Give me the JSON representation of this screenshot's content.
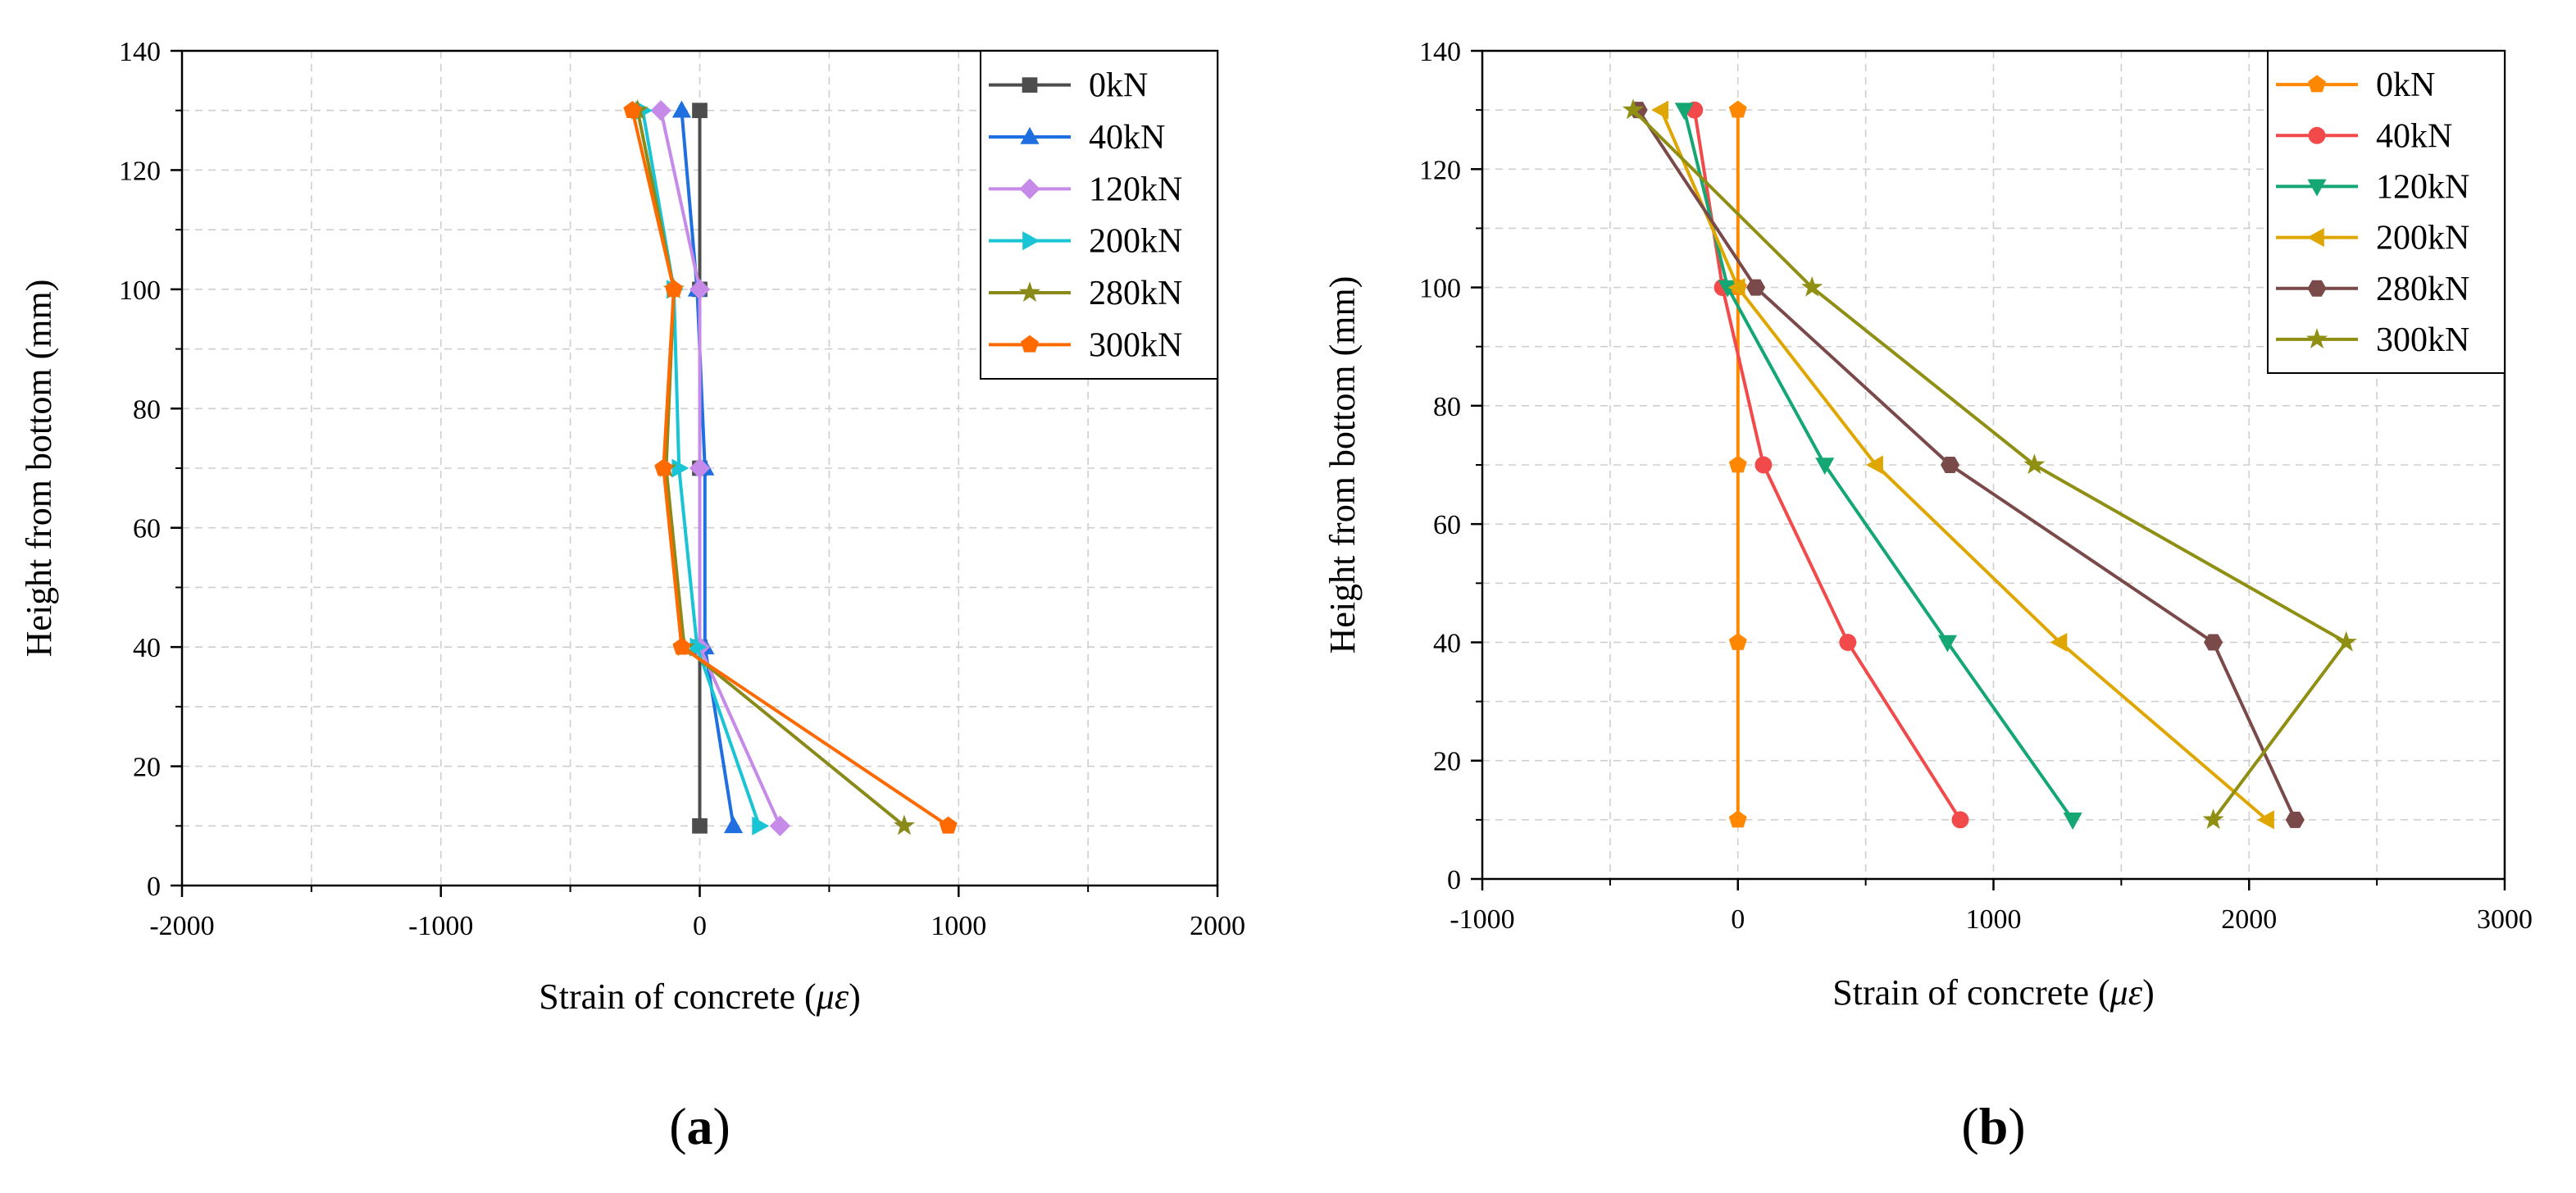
{
  "colors": {
    "axis": "#000000",
    "grid": "#cfcfcf",
    "s0": "#4d4d4d",
    "s40": "#1f6fe0",
    "s120": "#c68ae8",
    "s200": "#19c4d4",
    "s280": "#8a8a1a",
    "s300": "#ff6a00",
    "b0": "#ff8800",
    "b40": "#f24a4a",
    "b120": "#14a774",
    "b200": "#e0a600",
    "b280": "#7a4a4a",
    "b300": "#8f8f14"
  },
  "chart_data": [
    {
      "id": "a",
      "type": "line",
      "panel_label": "a",
      "xlabel": "Strain of concrete",
      "xlabel_unit": "με",
      "ylabel": "Height from bottom (mm)",
      "xlim": [
        -2000,
        2000
      ],
      "ylim": [
        0,
        140
      ],
      "xticks": [
        -2000,
        -1000,
        0,
        1000,
        2000
      ],
      "yticks": [
        0,
        20,
        40,
        60,
        80,
        100,
        120,
        140
      ],
      "xtick_labels": [
        "-2000",
        "-1000",
        "0",
        "1000",
        "2000"
      ],
      "ytick_labels": [
        "0",
        "20",
        "40",
        "60",
        "80",
        "100",
        "120",
        "140"
      ],
      "grid": true,
      "legend_position": "top-right",
      "series": [
        {
          "name": "0kN",
          "marker": "square",
          "color_key": "s0",
          "points": [
            [
              0,
              10
            ],
            [
              0,
              40
            ],
            [
              0,
              70
            ],
            [
              0,
              100
            ],
            [
              0,
              130
            ]
          ]
        },
        {
          "name": "40kN",
          "marker": "triangle-up",
          "color_key": "s40",
          "points": [
            [
              130,
              10
            ],
            [
              20,
              40
            ],
            [
              20,
              70
            ],
            [
              -10,
              100
            ],
            [
              -70,
              130
            ]
          ]
        },
        {
          "name": "120kN",
          "marker": "diamond",
          "color_key": "s120",
          "points": [
            [
              310,
              10
            ],
            [
              0,
              40
            ],
            [
              0,
              70
            ],
            [
              0,
              100
            ],
            [
              -150,
              130
            ]
          ]
        },
        {
          "name": "200kN",
          "marker": "triangle-right",
          "color_key": "s200",
          "points": [
            [
              230,
              10
            ],
            [
              -10,
              40
            ],
            [
              -80,
              70
            ],
            [
              -100,
              100
            ],
            [
              -220,
              130
            ]
          ]
        },
        {
          "name": "280kN",
          "marker": "star",
          "color_key": "s280",
          "points": [
            [
              790,
              10
            ],
            [
              -60,
              40
            ],
            [
              -130,
              70
            ],
            [
              -100,
              100
            ],
            [
              -240,
              130
            ]
          ]
        },
        {
          "name": "300kN",
          "marker": "pentagon",
          "color_key": "s300",
          "points": [
            [
              960,
              10
            ],
            [
              -70,
              40
            ],
            [
              -140,
              70
            ],
            [
              -100,
              100
            ],
            [
              -260,
              130
            ]
          ]
        }
      ]
    },
    {
      "id": "b",
      "type": "line",
      "panel_label": "b",
      "xlabel": "Strain of concrete",
      "xlabel_unit": "με",
      "ylabel": "Height from bottom (mm)",
      "xlim": [
        -1000,
        3000
      ],
      "ylim": [
        0,
        140
      ],
      "xticks": [
        -1000,
        0,
        1000,
        2000,
        3000
      ],
      "yticks": [
        0,
        20,
        40,
        60,
        80,
        100,
        120,
        140
      ],
      "xtick_labels": [
        "-1000",
        "0",
        "1000",
        "2000",
        "3000"
      ],
      "ytick_labels": [
        "0",
        "20",
        "40",
        "60",
        "80",
        "100",
        "120",
        "140"
      ],
      "grid": true,
      "legend_position": "top-right",
      "series": [
        {
          "name": "0kN",
          "marker": "pentagon",
          "color_key": "b0",
          "points": [
            [
              0,
              10
            ],
            [
              0,
              40
            ],
            [
              0,
              70
            ],
            [
              0,
              100
            ],
            [
              0,
              130
            ]
          ]
        },
        {
          "name": "40kN",
          "marker": "circle",
          "color_key": "b40",
          "points": [
            [
              870,
              10
            ],
            [
              430,
              40
            ],
            [
              100,
              70
            ],
            [
              -60,
              100
            ],
            [
              -170,
              130
            ]
          ]
        },
        {
          "name": "120kN",
          "marker": "triangle-down",
          "color_key": "b120",
          "points": [
            [
              1310,
              10
            ],
            [
              820,
              40
            ],
            [
              340,
              70
            ],
            [
              -40,
              100
            ],
            [
              -210,
              130
            ]
          ]
        },
        {
          "name": "200kN",
          "marker": "triangle-left",
          "color_key": "b200",
          "points": [
            [
              2070,
              10
            ],
            [
              1260,
              40
            ],
            [
              540,
              70
            ],
            [
              0,
              100
            ],
            [
              -300,
              130
            ]
          ]
        },
        {
          "name": "280kN",
          "marker": "hexagon",
          "color_key": "b280",
          "points": [
            [
              2180,
              10
            ],
            [
              1860,
              40
            ],
            [
              830,
              70
            ],
            [
              70,
              100
            ],
            [
              -390,
              130
            ]
          ]
        },
        {
          "name": "300kN",
          "marker": "star",
          "color_key": "b300",
          "points": [
            [
              1860,
              10
            ],
            [
              2380,
              40
            ],
            [
              1160,
              70
            ],
            [
              290,
              100
            ],
            [
              -410,
              130
            ]
          ]
        }
      ]
    }
  ]
}
